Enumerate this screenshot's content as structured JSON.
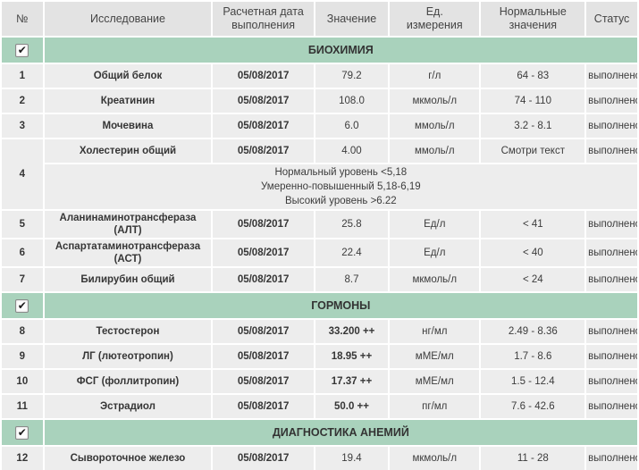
{
  "colors": {
    "section_green": "#a9d2bc",
    "header_bg": "#e3e3e3",
    "cell_bg": "#ededed",
    "text": "#3c3c3c"
  },
  "table": {
    "headers": [
      "№",
      "Исследование",
      "Расчетная дата\nвыполнения",
      "Значение",
      "Ед.\nизмерения",
      "Нормальные\nзначения",
      "Статус"
    ],
    "checkbox_glyph": "✔",
    "sections": [
      {
        "title": "БИОХИМИЯ",
        "checked": true,
        "rows": [
          {
            "num": "1",
            "name": "Общий белок",
            "date": "05/08/2017",
            "value": "79.2",
            "unit": "г/л",
            "normal": "64 - 83",
            "status": "выполнено"
          },
          {
            "num": "2",
            "name": "Креатинин",
            "date": "05/08/2017",
            "value": "108.0",
            "unit": "мкмоль/л",
            "normal": "74 - 110",
            "status": "выполнено"
          },
          {
            "num": "3",
            "name": "Мочевина",
            "date": "05/08/2017",
            "value": "6.0",
            "unit": "ммоль/л",
            "normal": "3.2 - 8.1",
            "status": "выполнено"
          },
          {
            "num": "4",
            "name": "Холестерин общий",
            "date": "05/08/2017",
            "value": "4.00",
            "unit": "ммоль/л",
            "normal": "Смотри текст",
            "status": "выполнено",
            "note_lines": [
              "Нормальный уровень <5,18",
              "Умеренно-повышенный 5,18-6,19",
              "Высокий уровень >6.22"
            ]
          },
          {
            "num": "5",
            "name": "Аланинаминотрансфераза (АЛТ)",
            "date": "05/08/2017",
            "value": "25.8",
            "unit": "Ед/л",
            "normal": "< 41",
            "status": "выполнено"
          },
          {
            "num": "6",
            "name": "Аспартатаминотрансфераза\n(АСТ)",
            "date": "05/08/2017",
            "value": "22.4",
            "unit": "Ед/л",
            "normal": "< 40",
            "status": "выполнено"
          },
          {
            "num": "7",
            "name": "Билирубин общий",
            "date": "05/08/2017",
            "value": "8.7",
            "unit": "мкмоль/л",
            "normal": "< 24",
            "status": "выполнено"
          }
        ]
      },
      {
        "title": "ГОРМОНЫ",
        "checked": true,
        "rows": [
          {
            "num": "8",
            "name": "Тестостерон",
            "date": "05/08/2017",
            "value": "33.200 ++",
            "unit": "нг/мл",
            "normal": "2.49 - 8.36",
            "status": "выполнено"
          },
          {
            "num": "9",
            "name": "ЛГ (лютеотропин)",
            "date": "05/08/2017",
            "value": "18.95 ++",
            "unit": "мМЕ/мл",
            "normal": "1.7 - 8.6",
            "status": "выполнено"
          },
          {
            "num": "10",
            "name": "ФСГ (фоллитропин)",
            "date": "05/08/2017",
            "value": "17.37 ++",
            "unit": "мМЕ/мл",
            "normal": "1.5 - 12.4",
            "status": "выполнено"
          },
          {
            "num": "11",
            "name": "Эстрадиол",
            "date": "05/08/2017",
            "value": "50.0 ++",
            "unit": "пг/мл",
            "normal": "7.6 - 42.6",
            "status": "выполнено"
          }
        ]
      },
      {
        "title": "ДИАГНОСТИКА АНЕМИЙ",
        "checked": true,
        "rows": [
          {
            "num": "12",
            "name": "Сывороточное железо",
            "date": "05/08/2017",
            "value": "19.4",
            "unit": "мкмоль/л",
            "normal": "11 - 28",
            "status": "выполнено"
          }
        ]
      }
    ]
  }
}
